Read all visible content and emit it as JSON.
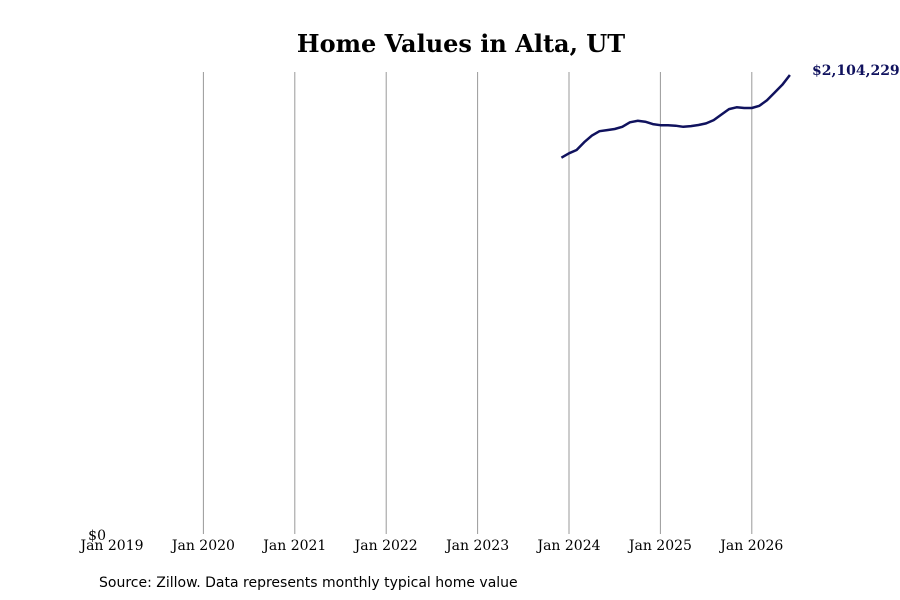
{
  "chart_data": {
    "type": "line",
    "title": "Home Values in Alta, UT",
    "xlabel": "",
    "ylabel": "",
    "x_ticks": [
      "Jan 2019",
      "Jan 2020",
      "Jan 2021",
      "Jan 2022",
      "Jan 2023",
      "Jan 2024",
      "Jan 2025",
      "Jan 2026"
    ],
    "y_tick_label": "$0",
    "xlim": [
      "2019-01",
      "2026-07"
    ],
    "ylim": [
      0,
      2104229
    ],
    "grid": "vertical",
    "legend": "none",
    "series": [
      {
        "color": "#10125e",
        "points": [
          [
            "2023-12",
            1730000
          ],
          [
            "2024-01",
            1750000
          ],
          [
            "2024-02",
            1765000
          ],
          [
            "2024-03",
            1800000
          ],
          [
            "2024-04",
            1830000
          ],
          [
            "2024-05",
            1850000
          ],
          [
            "2024-06",
            1855000
          ],
          [
            "2024-07",
            1860000
          ],
          [
            "2024-08",
            1870000
          ],
          [
            "2024-09",
            1890000
          ],
          [
            "2024-10",
            1897000
          ],
          [
            "2024-11",
            1893000
          ],
          [
            "2024-12",
            1882000
          ],
          [
            "2025-01",
            1877000
          ],
          [
            "2025-02",
            1877000
          ],
          [
            "2025-03",
            1875000
          ],
          [
            "2025-04",
            1870000
          ],
          [
            "2025-05",
            1873000
          ],
          [
            "2025-06",
            1878000
          ],
          [
            "2025-07",
            1885000
          ],
          [
            "2025-08",
            1900000
          ],
          [
            "2025-09",
            1925000
          ],
          [
            "2025-10",
            1950000
          ],
          [
            "2025-11",
            1958000
          ],
          [
            "2025-12",
            1955000
          ],
          [
            "2026-01",
            1955000
          ],
          [
            "2026-02",
            1965000
          ],
          [
            "2026-03",
            1990000
          ],
          [
            "2026-04",
            2025000
          ],
          [
            "2026-05",
            2060000
          ],
          [
            "2026-06",
            2104229
          ]
        ]
      }
    ],
    "end_label": "$2,104,229",
    "source": "Source: Zillow. Data represents monthly typical home value"
  }
}
